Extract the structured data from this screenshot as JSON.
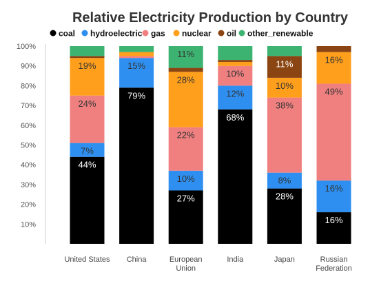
{
  "chart_data": {
    "type": "bar",
    "stacked": true,
    "title": "Relative Electricity Production by Country",
    "xlabel": "",
    "ylabel": "",
    "ylim": [
      0,
      100
    ],
    "yticks": [
      "10%",
      "20%",
      "30%",
      "40%",
      "50%",
      "60%",
      "70%",
      "80%",
      "90%",
      "100%"
    ],
    "legend_position": "top",
    "grid": false,
    "categories": [
      [
        "United States"
      ],
      [
        "China"
      ],
      [
        "European",
        "Union"
      ],
      [
        "India"
      ],
      [
        "Japan"
      ],
      [
        "Russian",
        "Federation"
      ]
    ],
    "series": [
      {
        "name": "coal",
        "color": "#000000",
        "values": [
          44,
          79,
          27,
          68,
          28,
          16
        ],
        "labels": [
          "44%",
          "79%",
          "27%",
          "68%",
          "28%",
          "16%"
        ]
      },
      {
        "name": "hydroelectric",
        "color": "#2e8ff0",
        "values": [
          7,
          15,
          10,
          12,
          8,
          16
        ],
        "labels": [
          "7%",
          "15%",
          "10%",
          "12%",
          "8%",
          "16%"
        ]
      },
      {
        "name": "gas",
        "color": "#f08080",
        "values": [
          24,
          1,
          22,
          10,
          38,
          49
        ],
        "labels": [
          "24%",
          "",
          "22%",
          "10%",
          "38%",
          "49%"
        ]
      },
      {
        "name": "nuclear",
        "color": "#ff9f1c",
        "values": [
          19,
          2,
          28,
          2,
          10,
          16
        ],
        "labels": [
          "19%",
          "",
          "28%",
          "",
          "10%",
          "16%"
        ]
      },
      {
        "name": "oil",
        "color": "#8b4513",
        "values": [
          1,
          0,
          2,
          1,
          11,
          3
        ],
        "labels": [
          "",
          "",
          "",
          "",
          "11%",
          ""
        ]
      },
      {
        "name": "other_renewable",
        "color": "#3cb371",
        "values": [
          5,
          3,
          11,
          7,
          5,
          0
        ],
        "labels": [
          "",
          "",
          "11%",
          "",
          "",
          ""
        ]
      }
    ]
  }
}
